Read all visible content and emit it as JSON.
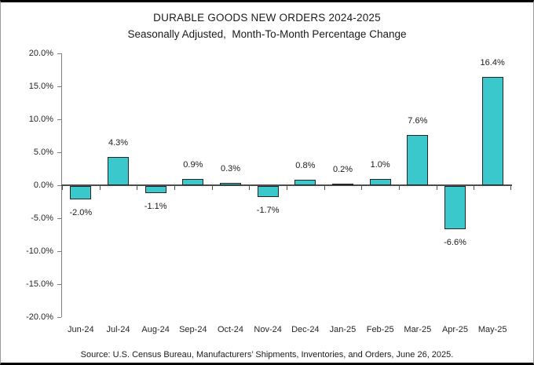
{
  "chart_data": {
    "type": "bar",
    "title": "DURABLE GOODS NEW ORDERS 2024-2025",
    "subtitle": "Seasonally Adjusted,  Month-To-Month Percentage Change",
    "categories": [
      "Jun-24",
      "Jul-24",
      "Aug-24",
      "Sep-24",
      "Oct-24",
      "Nov-24",
      "Dec-24",
      "Jan-25",
      "Feb-25",
      "Mar-25",
      "Apr-25",
      "May-25"
    ],
    "values": [
      -2.0,
      4.3,
      -1.1,
      0.9,
      0.3,
      -1.7,
      0.8,
      0.2,
      1.0,
      7.6,
      -6.6,
      16.4
    ],
    "data_labels": [
      "-2.0%",
      "4.3%",
      "-1.1%",
      "0.9%",
      "0.3%",
      "-1.7%",
      "0.8%",
      "0.2%",
      "1.0%",
      "7.6%",
      "-6.6%",
      "16.4%"
    ],
    "xlabel": "",
    "ylabel": "",
    "ylim": [
      -20,
      20
    ],
    "ytick_values": [
      20,
      15,
      10,
      5,
      0,
      -5,
      -10,
      -15,
      -20
    ],
    "ytick_labels": [
      "20.0%",
      "15.0%",
      "10.0%",
      "5.0%",
      "0.0%",
      "-5.0%",
      "-10.0%",
      "-15.0%",
      "-20.0%"
    ],
    "grid": "off",
    "legend": "none",
    "bar_color": "#3AC8CC",
    "bar_border_color": "#262626",
    "axis_color": "#808080",
    "zero_line_color": "#4d4d4d",
    "source": "Source: U.S. Census Bureau, Manufacturers’ Shipments, Inventories, and Orders, June 26, 2025."
  }
}
